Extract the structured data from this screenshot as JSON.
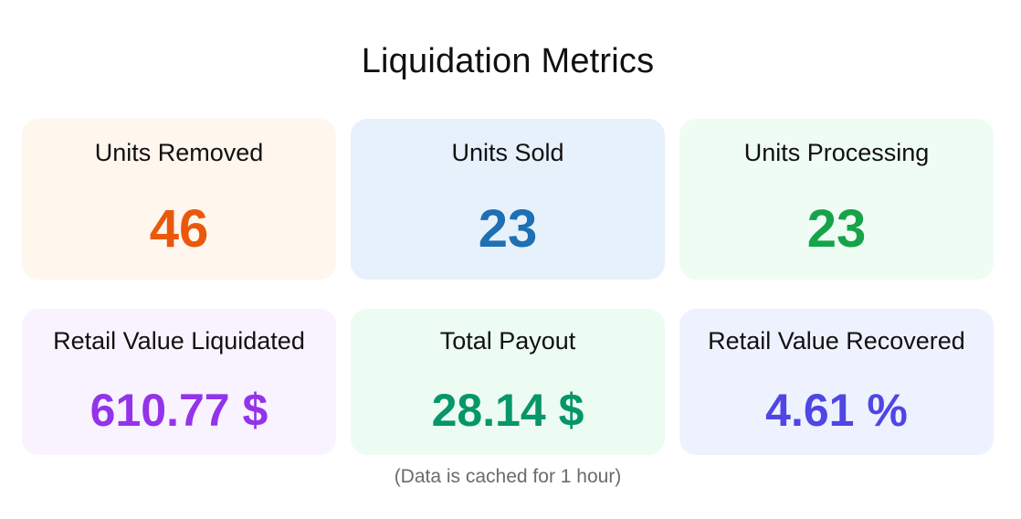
{
  "page": {
    "title": "Liquidation Metrics",
    "footnote": "(Data is cached for 1 hour)"
  },
  "metrics": [
    {
      "label": "Units Removed",
      "value": "46",
      "bg": "#fff6ed",
      "color": "#ea580c"
    },
    {
      "label": "Units Sold",
      "value": "23",
      "bg": "#e6f1fb",
      "color": "#1e6fb3"
    },
    {
      "label": "Units Processing",
      "value": "23",
      "bg": "#effcf3",
      "color": "#16a34a"
    },
    {
      "label": "Retail Value Liquidated",
      "value": "610.77 $",
      "bg": "#f8f3fe",
      "color": "#9333ea"
    },
    {
      "label": "Total Payout",
      "value": "28.14 $",
      "bg": "#ecfcf3",
      "color": "#059669"
    },
    {
      "label": "Retail Value Recovered",
      "value": "4.61 %",
      "bg": "#eef2fe",
      "color": "#4f46e5"
    }
  ]
}
